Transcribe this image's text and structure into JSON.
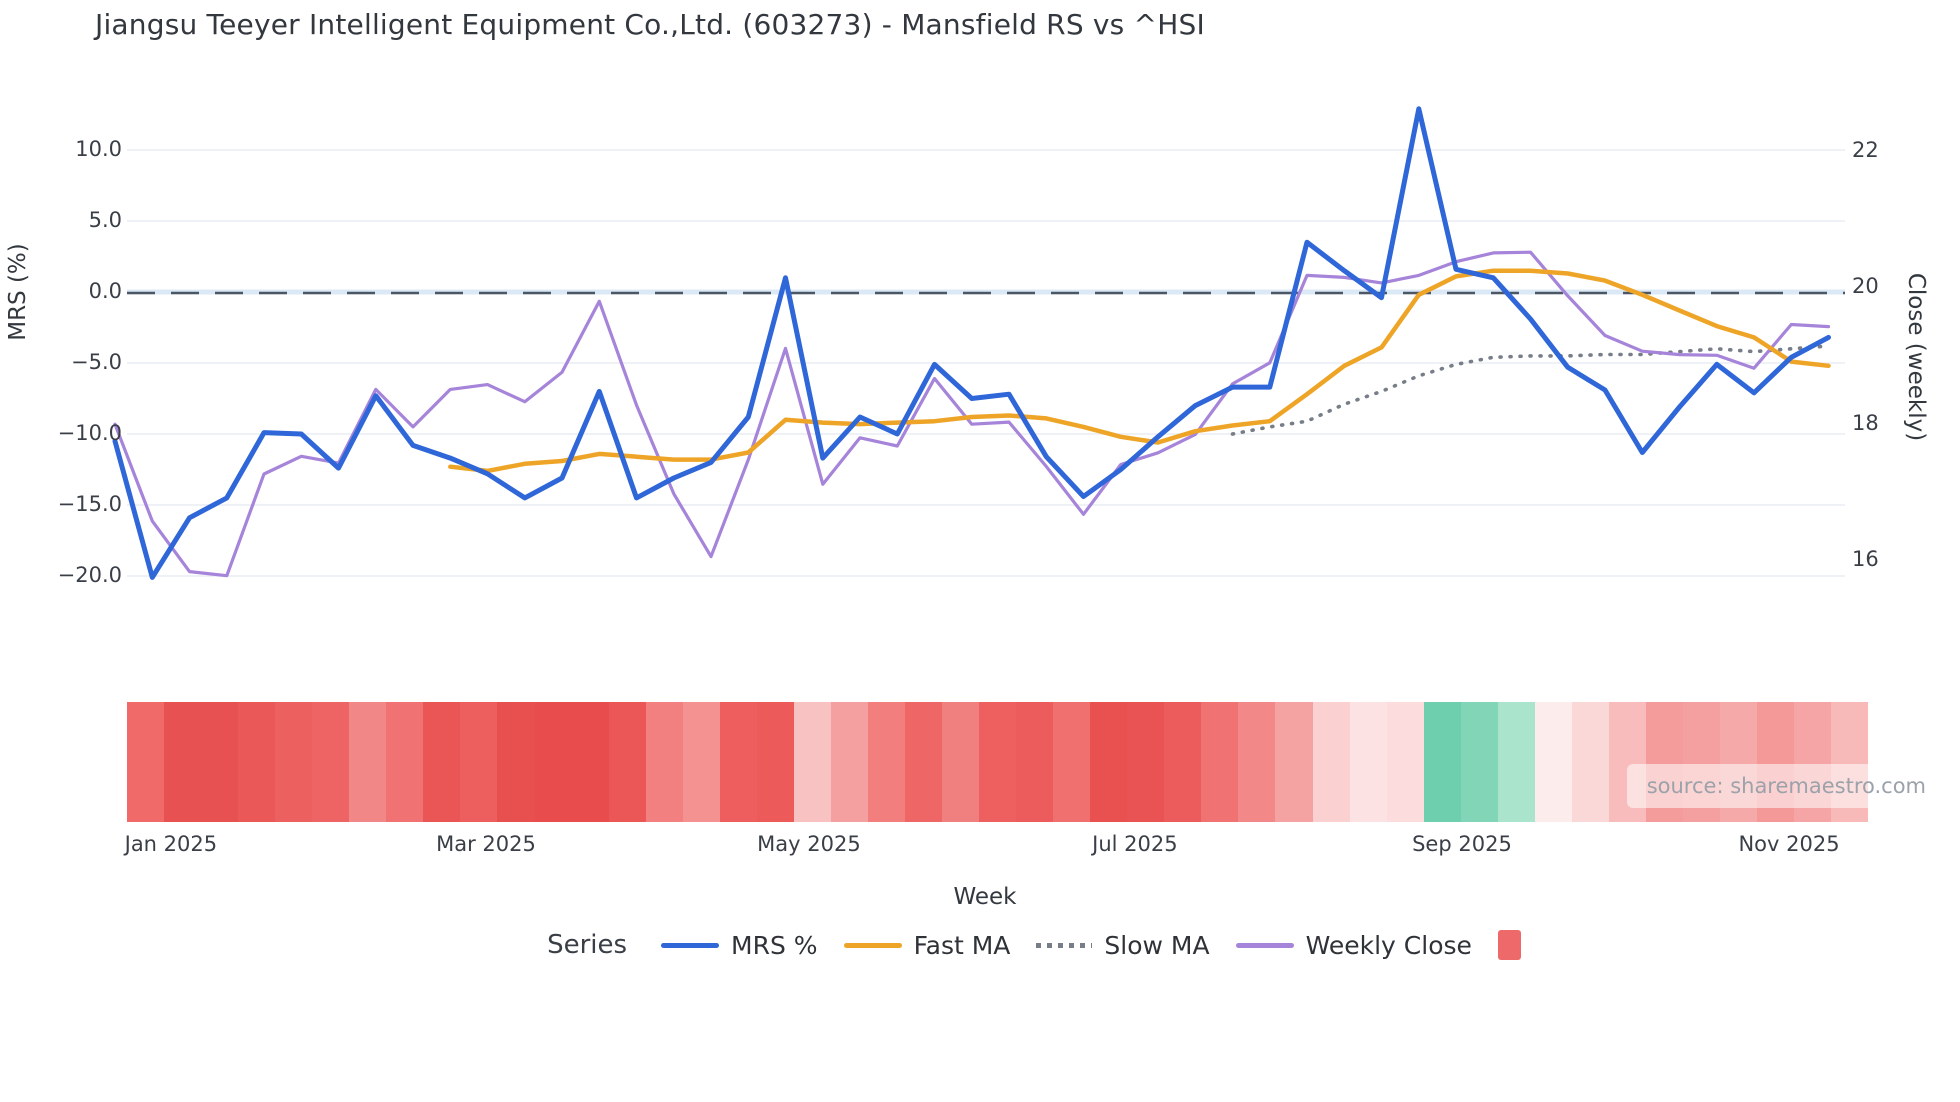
{
  "title": "Jiangsu Teeyer Intelligent Equipment Co.,Ltd. (603273) - Mansfield RS vs ^HSI",
  "source": "source: sharemaestro.com",
  "axes": {
    "left": {
      "title": "MRS (%)",
      "ticks": [
        {
          "label": "10.0",
          "value": 10
        },
        {
          "label": "5.0",
          "value": 5
        },
        {
          "label": "0.0",
          "value": 0
        },
        {
          "label": "−5.0",
          "value": -5
        },
        {
          "label": "−10.0",
          "value": -10
        },
        {
          "label": "−15.0",
          "value": -15
        },
        {
          "label": "−20.0",
          "value": -20
        }
      ]
    },
    "right": {
      "title": "Close (weekly)",
      "ticks": [
        {
          "label": "22",
          "value": 22
        },
        {
          "label": "20",
          "value": 20
        },
        {
          "label": "18",
          "value": 18
        },
        {
          "label": "16",
          "value": 16
        }
      ]
    },
    "x": {
      "title": "Week",
      "ticks": [
        {
          "label": "Jan 2025",
          "week": 2.5
        },
        {
          "label": "Mar 2025",
          "week": 10.96
        },
        {
          "label": "May 2025",
          "week": 19.63
        },
        {
          "label": "Jul 2025",
          "week": 28.38
        },
        {
          "label": "Sep 2025",
          "week": 37.16
        },
        {
          "label": "Nov 2025",
          "week": 45.94
        }
      ]
    }
  },
  "legend": {
    "title": "Series",
    "items": [
      {
        "label": "MRS %",
        "color": "#2f66d8",
        "type": "line"
      },
      {
        "label": "Fast MA",
        "color": "#eea527",
        "type": "line"
      },
      {
        "label": "Slow MA",
        "color": "#777e88",
        "type": "dotted"
      },
      {
        "label": "Weekly Close",
        "color": "#a584da",
        "type": "line"
      },
      {
        "label": "",
        "color": "#ee6a6a",
        "type": "square"
      }
    ]
  },
  "chart_data": {
    "type": "line",
    "title": "Jiangsu Teeyer Intelligent Equipment Co.,Ltd. (603273) - Mansfield RS vs ^HSI",
    "xlabel": "Week",
    "weeks": 47,
    "left_axis": {
      "label": "MRS (%)",
      "ticks": [
        10,
        5,
        0,
        -5,
        -10,
        -15,
        -20
      ],
      "range": [
        -23.5,
        13.5
      ],
      "zero_dashed_line": 0
    },
    "right_axis": {
      "label": "Close (weekly)",
      "ticks": [
        22,
        20,
        18,
        16
      ],
      "range": [
        15.4,
        22.6
      ]
    },
    "grid": true,
    "legend_position": "bottom",
    "series": [
      {
        "name": "MRS %",
        "axis": "left",
        "color": "#2f66d8",
        "style": "solid",
        "width": 5,
        "values": [
          -10.5,
          -20.1,
          -15.9,
          -14.5,
          -9.9,
          -10.0,
          -12.4,
          -7.3,
          -10.8,
          -11.7,
          -12.8,
          -14.5,
          -13.1,
          -7.0,
          -14.5,
          -13.1,
          -12.0,
          -8.8,
          1.0,
          -11.7,
          -8.8,
          -10.0,
          -5.1,
          -7.5,
          -7.2,
          -11.6,
          -14.4,
          -12.5,
          -10.2,
          -8.0,
          -6.7,
          -6.7,
          3.5,
          1.5,
          -0.4,
          12.9,
          1.6,
          1.0,
          -1.9,
          -5.3,
          -6.9,
          -11.3,
          -8.1,
          -5.1,
          -7.1,
          -4.6,
          -3.2
        ]
      },
      {
        "name": "Fast MA",
        "axis": "left",
        "color": "#eea527",
        "style": "solid",
        "width": 4.5,
        "values": [
          null,
          null,
          null,
          null,
          null,
          null,
          null,
          null,
          null,
          -12.3,
          -12.6,
          -12.1,
          -11.9,
          -11.4,
          -11.6,
          -11.8,
          -11.8,
          -11.3,
          -9.0,
          -9.2,
          -9.3,
          -9.2,
          -9.1,
          -8.8,
          -8.7,
          -8.9,
          -9.5,
          -10.2,
          -10.6,
          -9.8,
          -9.4,
          -9.1,
          -7.2,
          -5.2,
          -3.9,
          -0.2,
          1.1,
          1.5,
          1.5,
          1.3,
          0.8,
          -0.2,
          -1.3,
          -2.4,
          -3.2,
          -4.9,
          -5.2
        ]
      },
      {
        "name": "Slow MA",
        "axis": "left",
        "color": "#777e88",
        "style": "dotted",
        "width": 3.6,
        "values": [
          null,
          null,
          null,
          null,
          null,
          null,
          null,
          null,
          null,
          null,
          null,
          null,
          null,
          null,
          null,
          null,
          null,
          null,
          null,
          null,
          null,
          null,
          null,
          null,
          null,
          null,
          null,
          null,
          null,
          null,
          -10.0,
          -9.5,
          -9.1,
          -7.9,
          -7.0,
          -5.9,
          -5.1,
          -4.6,
          -4.5,
          -4.5,
          -4.4,
          -4.4,
          -4.2,
          -4.0,
          -4.2,
          -4.0,
          -3.8
        ]
      },
      {
        "name": "Weekly Close",
        "axis": "right",
        "color": "#a584da",
        "style": "solid",
        "width": 3.2,
        "values": [
          17.99,
          16.57,
          15.83,
          15.77,
          17.26,
          17.52,
          17.42,
          18.5,
          17.95,
          18.5,
          18.57,
          18.32,
          18.75,
          19.79,
          18.27,
          16.97,
          16.05,
          17.47,
          19.1,
          17.11,
          17.79,
          17.67,
          18.66,
          17.99,
          18.02,
          17.37,
          16.67,
          17.4,
          17.57,
          17.84,
          18.58,
          18.89,
          20.17,
          20.14,
          20.06,
          20.17,
          20.37,
          20.5,
          20.51,
          19.87,
          19.29,
          19.06,
          19.01,
          19.0,
          18.81,
          19.45,
          19.42
        ]
      }
    ],
    "heatmap": {
      "description": "weekly strength strip below chart",
      "colors": [
        "#f06a6a",
        "#e85151",
        "#e85151",
        "#ea5858",
        "#ed6060",
        "#ee6464",
        "#f28787",
        "#f07272",
        "#ea5656",
        "#ed5e5e",
        "#e84f4f",
        "#e84c4c",
        "#e84c4c",
        "#eb5757",
        "#f28080",
        "#f49292",
        "#ee5e5e",
        "#ed5a5a",
        "#f9c2c2",
        "#f5a0a0",
        "#f27e7e",
        "#ef6666",
        "#f08080",
        "#ee6060",
        "#ed5c5c",
        "#f07070",
        "#e95050",
        "#ea5353",
        "#ed5c5c",
        "#f07272",
        "#f28888",
        "#f5a2a2",
        "#fbd0d0",
        "#fce2e2",
        "#fcdcdc",
        "#6ecfae",
        "#82d5b7",
        "#abe4cd",
        "#fdecec",
        "#fbd8d8",
        "#f8bcbc",
        "#f49c9c",
        "#f5a0a0",
        "#f6a9a9",
        "#f49898",
        "#f5a5a5",
        "#f8b9b9"
      ]
    }
  }
}
